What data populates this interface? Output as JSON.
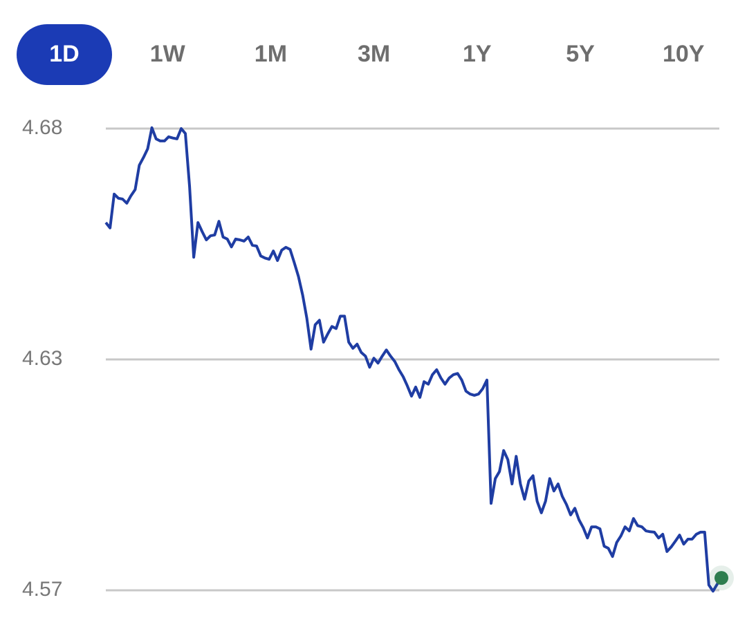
{
  "tabs": {
    "items": [
      "1D",
      "1W",
      "1M",
      "3M",
      "1Y",
      "5Y",
      "10Y"
    ],
    "selected": 0
  },
  "chart_data": {
    "type": "line",
    "ylim": [
      4.5705,
      4.6825
    ],
    "yticks": [
      {
        "value": 4.6825,
        "label": "4.68"
      },
      {
        "value": 4.6265,
        "label": "4.63"
      },
      {
        "value": 4.5705,
        "label": "4.57"
      }
    ],
    "grid": true,
    "series": [
      {
        "color": "#1f3da3",
        "values": [
          4.6597,
          4.6584,
          4.6666,
          4.6656,
          4.6654,
          4.6644,
          4.6662,
          4.6677,
          4.6736,
          4.6755,
          4.6776,
          4.6827,
          4.68,
          4.6795,
          4.6795,
          4.6805,
          4.6802,
          4.68,
          4.6825,
          4.6813,
          4.6684,
          4.6513,
          4.6597,
          4.6575,
          4.6555,
          4.6565,
          4.6567,
          4.66,
          4.6562,
          4.6557,
          4.6538,
          4.6557,
          4.6555,
          4.6552,
          4.6562,
          4.6542,
          4.654,
          4.6516,
          4.6511,
          4.6508,
          4.6528,
          4.6505,
          4.653,
          4.6537,
          4.6532,
          4.65,
          4.6466,
          4.6421,
          4.6365,
          4.629,
          4.6349,
          4.636,
          4.6307,
          4.6327,
          4.6345,
          4.634,
          4.637,
          4.637,
          4.6307,
          4.6292,
          4.6302,
          4.6282,
          4.6273,
          4.6246,
          4.6268,
          4.6256,
          4.6273,
          4.6288,
          4.6273,
          4.626,
          4.624,
          4.6223,
          4.6201,
          4.6176,
          4.6198,
          4.6173,
          4.6211,
          4.6205,
          4.6228,
          4.624,
          4.622,
          4.6205,
          4.622,
          4.6228,
          4.6231,
          4.6215,
          4.6188,
          4.6181,
          4.6178,
          4.6181,
          4.6194,
          4.6215,
          4.5916,
          4.5976,
          4.5993,
          4.6044,
          4.6022,
          4.5963,
          4.603,
          4.5963,
          4.5926,
          4.597,
          4.5983,
          4.5921,
          4.5893,
          4.5921,
          4.5976,
          4.5946,
          4.5963,
          4.5933,
          4.5913,
          4.5888,
          4.5904,
          4.5876,
          4.5857,
          4.5832,
          4.5859,
          4.5859,
          4.5854,
          4.5812,
          4.5807,
          4.5787,
          4.5821,
          4.5837,
          4.5859,
          4.5849,
          4.5879,
          4.5862,
          4.5859,
          4.5849,
          4.5847,
          4.5846,
          4.5832,
          4.5841,
          4.5799,
          4.581,
          4.5824,
          4.5839,
          4.5817,
          4.5829,
          4.5829,
          4.5841,
          4.5846,
          4.5846,
          4.5718,
          4.5703,
          4.572,
          4.5735
        ]
      }
    ],
    "end_marker_color": "#2e7d4f"
  }
}
